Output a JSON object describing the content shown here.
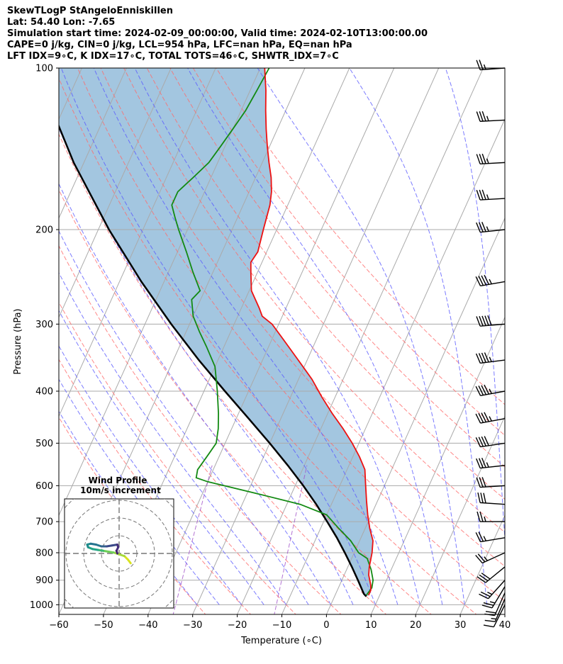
{
  "header": {
    "line1": "SkewTLogP StAngeloEnniskillen",
    "line2": "Lat: 54.40   Lon: -7.65",
    "line3": "Simulation start time: 2024-02-09_00:00:00, Valid time: 2024-02-10T13:00:00.00",
    "line4": "CAPE=0 j/kg, CIN=0 j/kg, LCL=954 hPa, LFC=nan hPa, EQ=nan hPa",
    "line5": "LFT IDX=9∘C, K IDX=17∘C, TOTAL TOTS=46∘C, SHWTR_IDX=7∘C"
  },
  "chart_data": {
    "type": "line",
    "xlabel": "Temperature (∘C)",
    "ylabel": "Pressure (hPa)",
    "xlim": [
      -60,
      40
    ],
    "ylim": [
      1050,
      100
    ],
    "x_ticks": [
      "−60",
      "−50",
      "−40",
      "−30",
      "−20",
      "−10",
      "0",
      "10",
      "20",
      "30",
      "40"
    ],
    "y_ticks": [
      "100",
      "200",
      "300",
      "400",
      "500",
      "600",
      "700",
      "800",
      "900",
      "1000"
    ],
    "y_tick_values": [
      100,
      200,
      300,
      400,
      500,
      600,
      700,
      800,
      900,
      1000
    ],
    "y_scale": "log",
    "skew": "temperature lines slanted right with height",
    "grid": true,
    "colors": {
      "temperature": "#ee1111",
      "dewpoint": "#138a13",
      "parcel": "#000000",
      "cape_fill": "#a3c6e0",
      "dry_adiabats": "#ff6a6a",
      "moist_adiabats": "#5a5aff",
      "mixing_ratio": "#a050c8",
      "isotherms": "#aaaaaa"
    },
    "temperature_profile": {
      "pressure": [
        960,
        940,
        920,
        880,
        850,
        800,
        760,
        720,
        680,
        640,
        600,
        560,
        530,
        500,
        470,
        440,
        410,
        380,
        350,
        320,
        300,
        290,
        280,
        260,
        240,
        230,
        220,
        200,
        180,
        170,
        160,
        150,
        140,
        130,
        120,
        110,
        100
      ],
      "temp": [
        7.5,
        7.5,
        7.0,
        5.5,
        4.8,
        4.0,
        3.0,
        1.0,
        -0.8,
        -2.5,
        -4.2,
        -6.0,
        -8.5,
        -11.5,
        -15.0,
        -19.0,
        -23.0,
        -27.0,
        -32.0,
        -37.5,
        -41.5,
        -44.5,
        -46.0,
        -49.5,
        -51.5,
        -52.5,
        -52.0,
        -53.0,
        -54.0,
        -55.0,
        -56.5,
        -58.5,
        -60.5,
        -62.5,
        -64.5,
        -66.5,
        -69.0
      ]
    },
    "dewpoint_profile": {
      "pressure": [
        960,
        930,
        900,
        860,
        820,
        800,
        760,
        720,
        680,
        650,
        620,
        590,
        580,
        560,
        540,
        520,
        500,
        470,
        440,
        400,
        360,
        330,
        310,
        290,
        270,
        260,
        240,
        220,
        200,
        190,
        180,
        170,
        160,
        150,
        140,
        130,
        120,
        110,
        100
      ],
      "dewpoint": [
        7.0,
        7.5,
        7.0,
        5.5,
        3.5,
        1.0,
        -2.0,
        -6.0,
        -10.0,
        -17.0,
        -28.0,
        -40.0,
        -43.0,
        -43.5,
        -43.0,
        -42.5,
        -42.0,
        -43.0,
        -44.5,
        -47.0,
        -50.0,
        -54.0,
        -57.0,
        -60.0,
        -62.0,
        -61.0,
        -64.5,
        -68.0,
        -72.0,
        -74.0,
        -76.0,
        -76.0,
        -74.0,
        -72.0,
        -71.0,
        -70.0,
        -69.0,
        -68.5,
        -68.0
      ]
    },
    "parcel_profile": {
      "pressure": [
        965,
        954,
        900,
        850,
        800,
        750,
        700,
        650,
        600,
        550,
        500,
        450,
        400,
        350,
        300,
        250,
        200,
        150,
        100
      ],
      "temp": [
        7.1,
        6.3,
        3.6,
        0.9,
        -2.1,
        -5.4,
        -9.2,
        -13.4,
        -18.2,
        -23.7,
        -30.0,
        -37.2,
        -45.3,
        -54.3,
        -64.1,
        -75.1,
        -87.6,
        -102.3,
        -120.5
      ]
    },
    "wind_barbs": [
      {
        "pressure": 1000,
        "u": 2,
        "v": 4
      },
      {
        "pressure": 975,
        "u": 3,
        "v": 7
      },
      {
        "pressure": 950,
        "u": 4,
        "v": 9
      },
      {
        "pressure": 925,
        "u": 6,
        "v": 10
      },
      {
        "pressure": 900,
        "u": 9,
        "v": 10
      },
      {
        "pressure": 850,
        "u": 11,
        "v": 9
      },
      {
        "pressure": 800,
        "u": 11,
        "v": 5
      },
      {
        "pressure": 750,
        "u": 12,
        "v": 2
      },
      {
        "pressure": 700,
        "u": 14,
        "v": 0
      },
      {
        "pressure": 650,
        "u": 15,
        "v": -1
      },
      {
        "pressure": 600,
        "u": 16,
        "v": 1
      },
      {
        "pressure": 550,
        "u": 18,
        "v": 2
      },
      {
        "pressure": 500,
        "u": 20,
        "v": 3
      },
      {
        "pressure": 450,
        "u": 22,
        "v": 4
      },
      {
        "pressure": 400,
        "u": 22,
        "v": 4
      },
      {
        "pressure": 350,
        "u": 24,
        "v": 3
      },
      {
        "pressure": 300,
        "u": 25,
        "v": 2
      },
      {
        "pressure": 250,
        "u": 23,
        "v": 4
      },
      {
        "pressure": 200,
        "u": 19,
        "v": 2
      },
      {
        "pressure": 175,
        "u": 18,
        "v": 1
      },
      {
        "pressure": 150,
        "u": 18,
        "v": 1
      },
      {
        "pressure": 125,
        "u": 19,
        "v": 1
      },
      {
        "pressure": 100,
        "u": 14,
        "v": 1
      }
    ]
  },
  "hodograph": {
    "title": "Wind Profile",
    "subtitle": "10m/s increment",
    "rings_ms": [
      10,
      20,
      30,
      40
    ],
    "points": [
      {
        "u": 6.5,
        "v": -5.5
      },
      {
        "u": 5.0,
        "v": -3.5
      },
      {
        "u": 3.0,
        "v": -1.5
      },
      {
        "u": 0.0,
        "v": -0.5
      },
      {
        "u": -3.0,
        "v": 0.5
      },
      {
        "u": -6.0,
        "v": 1.0
      },
      {
        "u": -9.0,
        "v": 1.5
      },
      {
        "u": -12.0,
        "v": 2.0
      },
      {
        "u": -15.0,
        "v": 2.5
      },
      {
        "u": -17.5,
        "v": 3.5
      },
      {
        "u": -18.0,
        "v": 5.0
      },
      {
        "u": -16.0,
        "v": 5.5
      },
      {
        "u": -13.0,
        "v": 5.0
      },
      {
        "u": -10.0,
        "v": 4.0
      },
      {
        "u": -7.0,
        "v": 4.0
      },
      {
        "u": -4.0,
        "v": 4.5
      },
      {
        "u": -1.0,
        "v": 5.0
      },
      {
        "u": -0.5,
        "v": 3.5
      },
      {
        "u": -1.5,
        "v": 1.5
      },
      {
        "u": -1.0,
        "v": 0.0
      }
    ]
  }
}
